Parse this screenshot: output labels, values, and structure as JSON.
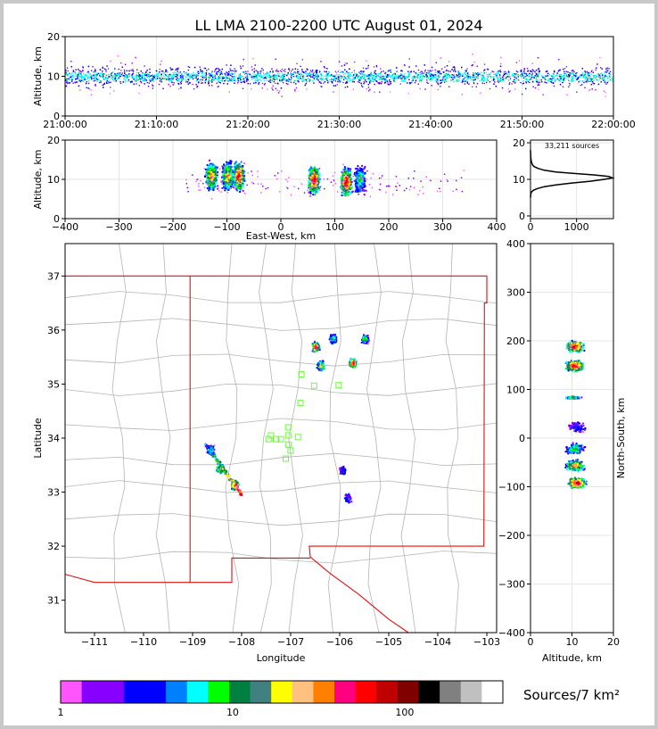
{
  "title": "LL LMA 2100-2200 UTC August 01, 2024",
  "colors": {
    "frame": "#c8c8c8",
    "axis": "#000000",
    "grid": "#e6e6e6",
    "border": "#b4b4b4",
    "state_border": "#e01010",
    "station": "#66ff33"
  },
  "chart_data": [
    {
      "id": "time_height",
      "type": "scatter",
      "xlabel": "",
      "ylabel": "Altitude, km",
      "x_ticks": [
        "21:00:00",
        "21:10:00",
        "21:20:00",
        "21:30:00",
        "21:40:00",
        "21:50:00",
        "22:00:00"
      ],
      "xlim": [
        "21:00:00",
        "22:00:00"
      ],
      "ylim": [
        0,
        20
      ],
      "y_ticks": [
        0,
        10,
        20
      ],
      "description_core_altitude_km": [
        6,
        14
      ]
    },
    {
      "id": "ew_height",
      "type": "heatmap",
      "xlabel": "East-West, km",
      "ylabel": "Altitude, km",
      "xlim": [
        -400,
        400
      ],
      "x_ticks": [
        -400,
        -300,
        -200,
        -100,
        0,
        100,
        200,
        300,
        400
      ],
      "ylim": [
        0,
        20
      ],
      "y_ticks": [
        0,
        10,
        20
      ],
      "clusters_km": [
        {
          "x": -130,
          "alt": 11,
          "intensity": "high"
        },
        {
          "x": -100,
          "alt": 11,
          "intensity": "high"
        },
        {
          "x": -80,
          "alt": 11,
          "intensity": "very high"
        },
        {
          "x": 60,
          "alt": 10,
          "intensity": "very high"
        },
        {
          "x": 120,
          "alt": 9.5,
          "intensity": "very high"
        },
        {
          "x": 145,
          "alt": 10,
          "intensity": "medium"
        }
      ]
    },
    {
      "id": "altitude_histogram",
      "type": "line",
      "annotation": "33,211 sources",
      "xlim": [
        0,
        1800
      ],
      "x_ticks": [
        0,
        1000
      ],
      "ylim": [
        0,
        20
      ],
      "y_ticks": [
        0,
        10,
        20
      ],
      "x": [
        0,
        5,
        20,
        60,
        150,
        300,
        550,
        900,
        1300,
        1600,
        1780,
        1700,
        1400,
        950,
        550,
        300,
        160,
        80,
        40,
        15,
        5,
        0
      ],
      "y": [
        5,
        6,
        6.5,
        7,
        7.5,
        8,
        8.5,
        9,
        9.5,
        10,
        10.4,
        10.8,
        11.2,
        11.6,
        12,
        12.5,
        13,
        13.5,
        14,
        15,
        16,
        18
      ]
    },
    {
      "id": "plan_view",
      "type": "heatmap",
      "xlabel": "Longitude",
      "ylabel": "Latitude",
      "xlim": [
        -111.6,
        -102.8
      ],
      "x_ticks": [
        -111,
        -110,
        -109,
        -108,
        -107,
        -106,
        -105,
        -104,
        -103
      ],
      "ylim": [
        30.4,
        37.6
      ],
      "y_ticks": [
        31,
        32,
        33,
        34,
        35,
        36,
        37
      ],
      "storm_cells": [
        {
          "lon": -106.5,
          "lat": 35.7,
          "intensity": "very high"
        },
        {
          "lon": -106.4,
          "lat": 35.35,
          "intensity": "high"
        },
        {
          "lon": -106.15,
          "lat": 35.85,
          "intensity": "medium"
        },
        {
          "lon": -105.75,
          "lat": 35.4,
          "intensity": "very high"
        },
        {
          "lon": -105.5,
          "lat": 35.85,
          "intensity": "medium"
        },
        {
          "lon": -108.65,
          "lat": 33.8,
          "intensity": "medium"
        },
        {
          "lon": -108.45,
          "lat": 33.45,
          "intensity": "high"
        },
        {
          "lon": -108.15,
          "lat": 33.15,
          "intensity": "very high"
        },
        {
          "lon": -105.95,
          "lat": 33.4,
          "intensity": "low"
        },
        {
          "lon": -105.85,
          "lat": 32.9,
          "intensity": "low"
        }
      ],
      "stations": [
        {
          "lon": -106.78,
          "lat": 35.18
        },
        {
          "lon": -106.52,
          "lat": 34.97
        },
        {
          "lon": -106.02,
          "lat": 34.98
        },
        {
          "lon": -106.8,
          "lat": 34.65
        },
        {
          "lon": -107.05,
          "lat": 34.2
        },
        {
          "lon": -107.05,
          "lat": 34.05
        },
        {
          "lon": -107.4,
          "lat": 34.05
        },
        {
          "lon": -107.2,
          "lat": 33.98
        },
        {
          "lon": -106.85,
          "lat": 34.02
        },
        {
          "lon": -107.45,
          "lat": 33.98
        },
        {
          "lon": -107.05,
          "lat": 33.88
        },
        {
          "lon": -107.0,
          "lat": 33.77
        },
        {
          "lon": -107.1,
          "lat": 33.62
        },
        {
          "lon": -107.3,
          "lat": 33.98
        }
      ]
    },
    {
      "id": "ns_height",
      "type": "heatmap",
      "xlabel": "Altitude, km",
      "ylabel": "North-South, km",
      "xlim": [
        0,
        20
      ],
      "x_ticks": [
        0,
        10,
        20
      ],
      "ylim": [
        -400,
        400
      ],
      "y_ticks": [
        -400,
        -300,
        -200,
        -100,
        0,
        100,
        200,
        300,
        400
      ],
      "clusters_km": [
        {
          "alt": 10.5,
          "y": 190,
          "intensity": "very high"
        },
        {
          "alt": 10.5,
          "y": 150,
          "intensity": "very high"
        },
        {
          "alt": 10,
          "y": 85,
          "intensity": "medium"
        },
        {
          "alt": 11,
          "y": 25,
          "intensity": "low"
        },
        {
          "alt": 10.5,
          "y": -20,
          "intensity": "medium"
        },
        {
          "alt": 10.5,
          "y": -55,
          "intensity": "high"
        },
        {
          "alt": 11,
          "y": -90,
          "intensity": "very high"
        }
      ]
    }
  ],
  "colorbar": {
    "label": "Sources/7 km²",
    "tick_labels": [
      "1",
      "10",
      "100"
    ],
    "colors": [
      "#ff55ff",
      "#8800ff",
      "#8800ff",
      "#0000ff",
      "#0000ff",
      "#0080ff",
      "#00ffff",
      "#00ff00",
      "#008040",
      "#408080",
      "#ffff00",
      "#ffc080",
      "#ff8000",
      "#ff0080",
      "#ff0000",
      "#c00000",
      "#800000",
      "#000000",
      "#808080",
      "#c0c0c0",
      "#ffffff"
    ]
  }
}
